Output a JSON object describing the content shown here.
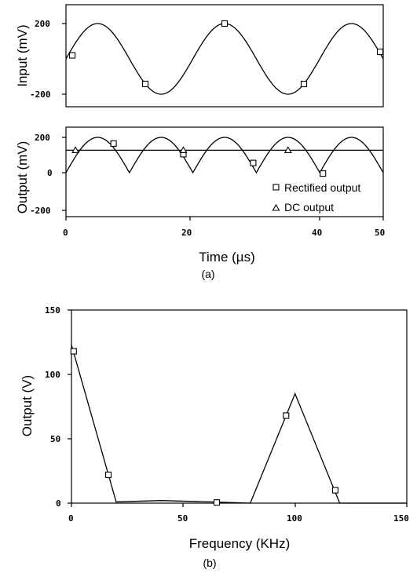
{
  "chart_data": [
    {
      "panel": "a-top",
      "type": "line",
      "ylabel": "Input (mV)",
      "xlim": [
        0,
        50
      ],
      "ylim": [
        -230,
        230
      ],
      "yticks": [
        "200",
        "-200"
      ],
      "curve": "input sine, amplitude 200, period 20",
      "series": [
        {
          "name": "",
          "marker": "square",
          "x": [
            1,
            12.5,
            25,
            37.5,
            49.5
          ],
          "y": [
            20,
            -142,
            200,
            -142,
            40
          ]
        }
      ]
    },
    {
      "panel": "a-bottom",
      "type": "line",
      "ylabel": "Output (mV)",
      "xlabel": "Time (µs)",
      "xlim": [
        0,
        50
      ],
      "ylim": [
        -240,
        240
      ],
      "xticks": [
        "0",
        "20",
        "40",
        "50"
      ],
      "yticks": [
        "200",
        "0",
        "-200"
      ],
      "series": [
        {
          "name": "Rectified output",
          "marker": "square",
          "x": [
            7.5,
            18.5,
            29.5,
            40.5
          ],
          "y": [
            165,
            105,
            55,
            -5
          ]
        },
        {
          "name": "DC output",
          "marker": "triangle",
          "x": [
            1.5,
            18.5,
            35
          ],
          "y": [
            127,
            127,
            127
          ]
        }
      ],
      "dc_level": 127,
      "legend": "bottom-right"
    },
    {
      "panel": "b",
      "type": "line",
      "xlabel": "Frequency (KHz)",
      "ylabel": "Output (V)",
      "xlim": [
        0,
        150
      ],
      "ylim": [
        0,
        150
      ],
      "xticks": [
        "0",
        "50",
        "100",
        "150"
      ],
      "yticks": [
        "150",
        "100",
        "50",
        "0"
      ],
      "line": {
        "x": [
          0,
          20,
          40,
          62,
          80,
          100,
          120,
          150
        ],
        "y": [
          123,
          1,
          2,
          1,
          0,
          85,
          0,
          0
        ]
      },
      "series": [
        {
          "name": "",
          "marker": "square",
          "x": [
            1,
            16.5,
            65,
            96,
            118
          ],
          "y": [
            118,
            22,
            0.5,
            68,
            10
          ]
        }
      ]
    }
  ],
  "captions": [
    "(a)",
    "(b)"
  ]
}
